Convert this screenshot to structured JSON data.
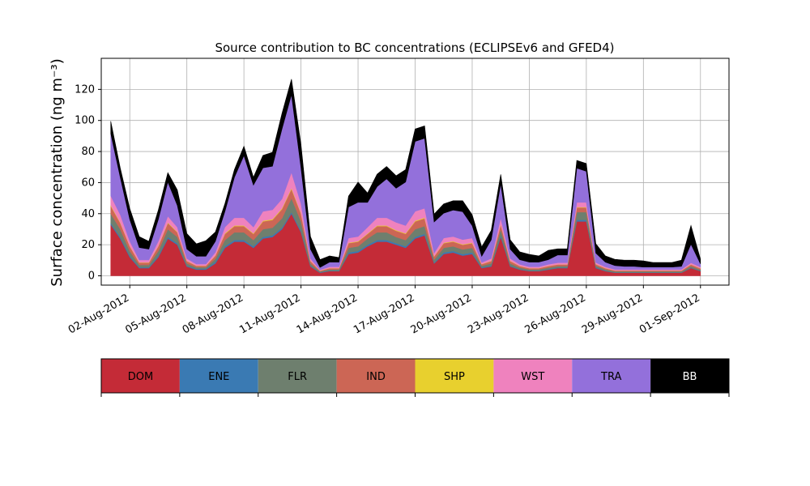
{
  "chart_data": {
    "type": "area",
    "stacked": true,
    "title": "Source contribution to BC concentrations (ECLIPSEv6 and GFED4)",
    "ylabel": "Surface concentration (ng m⁻³)",
    "xlabel": "",
    "x_range": [
      "2012-07-31T12:00",
      "2012-09-02T12:00"
    ],
    "ylim": [
      -6,
      140
    ],
    "y_ticks": [
      0,
      20,
      40,
      60,
      80,
      100,
      120
    ],
    "x_ticks": [
      "02-Aug-2012",
      "05-Aug-2012",
      "08-Aug-2012",
      "11-Aug-2012",
      "14-Aug-2012",
      "17-Aug-2012",
      "20-Aug-2012",
      "23-Aug-2012",
      "26-Aug-2012",
      "29-Aug-2012",
      "01-Sep-2012"
    ],
    "x_tick_dates": [
      "2012-08-02",
      "2012-08-05",
      "2012-08-08",
      "2012-08-11",
      "2012-08-14",
      "2012-08-17",
      "2012-08-20",
      "2012-08-23",
      "2012-08-26",
      "2012-08-29",
      "2012-09-01"
    ],
    "grid": true,
    "legend_position": "bottom",
    "x": [
      "2012-08-01T00:00",
      "2012-08-01T12:00",
      "2012-08-02T00:00",
      "2012-08-02T12:00",
      "2012-08-03T00:00",
      "2012-08-03T12:00",
      "2012-08-04T00:00",
      "2012-08-04T12:00",
      "2012-08-05T00:00",
      "2012-08-05T12:00",
      "2012-08-06T00:00",
      "2012-08-06T12:00",
      "2012-08-07T00:00",
      "2012-08-07T12:00",
      "2012-08-08T00:00",
      "2012-08-08T12:00",
      "2012-08-09T00:00",
      "2012-08-09T12:00",
      "2012-08-10T00:00",
      "2012-08-10T12:00",
      "2012-08-11T00:00",
      "2012-08-11T12:00",
      "2012-08-12T00:00",
      "2012-08-12T12:00",
      "2012-08-13T00:00",
      "2012-08-13T12:00",
      "2012-08-14T00:00",
      "2012-08-14T12:00",
      "2012-08-15T00:00",
      "2012-08-15T12:00",
      "2012-08-16T00:00",
      "2012-08-16T12:00",
      "2012-08-17T00:00",
      "2012-08-17T12:00",
      "2012-08-18T00:00",
      "2012-08-18T12:00",
      "2012-08-19T00:00",
      "2012-08-19T12:00",
      "2012-08-20T00:00",
      "2012-08-20T12:00",
      "2012-08-21T00:00",
      "2012-08-21T12:00",
      "2012-08-22T00:00",
      "2012-08-22T12:00",
      "2012-08-23T00:00",
      "2012-08-23T12:00",
      "2012-08-24T00:00",
      "2012-08-24T12:00",
      "2012-08-25T00:00",
      "2012-08-25T12:00",
      "2012-08-26T00:00",
      "2012-08-26T12:00",
      "2012-08-27T00:00",
      "2012-08-27T12:00",
      "2012-08-28T00:00",
      "2012-08-28T12:00",
      "2012-08-29T00:00",
      "2012-08-29T12:00",
      "2012-08-30T00:00",
      "2012-08-30T12:00",
      "2012-08-31T00:00",
      "2012-08-31T12:00",
      "2012-09-01T00:00"
    ],
    "series": [
      {
        "name": "DOM",
        "color": "#c42b37",
        "values": [
          33,
          24,
          12,
          5,
          5,
          12,
          24,
          20,
          6,
          4,
          4,
          8,
          18,
          22,
          22,
          18,
          24,
          25,
          30,
          40,
          28,
          6,
          2,
          3,
          3,
          14,
          15,
          19,
          22,
          22,
          20,
          18,
          24,
          26,
          8,
          14,
          15,
          13,
          14,
          5,
          6,
          25,
          6,
          4,
          3,
          3,
          4,
          5,
          5,
          35,
          35,
          5,
          3,
          2,
          2,
          2,
          2,
          2,
          2,
          2,
          2,
          5,
          3
        ]
      },
      {
        "name": "ENE",
        "color": "#3a7ab3",
        "values": [
          1,
          1,
          1,
          0.5,
          0.5,
          1,
          1,
          1,
          0.5,
          0.5,
          0.5,
          1,
          1,
          1,
          1,
          1,
          1,
          1,
          1,
          1,
          1,
          0.5,
          0.3,
          0.3,
          0.3,
          1,
          1,
          1,
          1,
          1,
          1,
          1,
          1,
          1,
          0.5,
          1,
          1,
          1,
          1,
          0.5,
          0.5,
          1,
          0.5,
          0.3,
          0.3,
          0.3,
          0.3,
          0.3,
          0.3,
          1,
          1,
          0.5,
          0.3,
          0.2,
          0.2,
          0.2,
          0.2,
          0.2,
          0.2,
          0.2,
          0.2,
          0.3,
          0.2
        ]
      },
      {
        "name": "FLR",
        "color": "#6e7f6e",
        "values": [
          6,
          5,
          3,
          1.5,
          1.5,
          3,
          5,
          4,
          1.5,
          1,
          1,
          2,
          4,
          5,
          5,
          4,
          5,
          5,
          6,
          9,
          6,
          1.5,
          0.5,
          0.8,
          0.8,
          3,
          3,
          4,
          5,
          5,
          4,
          4,
          5,
          5,
          2,
          3,
          3,
          3,
          3,
          1,
          1.5,
          4,
          1.5,
          1,
          0.8,
          0.8,
          1,
          1,
          1,
          5,
          5,
          1,
          0.8,
          0.6,
          0.6,
          0.6,
          0.6,
          0.6,
          0.6,
          0.6,
          0.6,
          1,
          0.8
        ]
      },
      {
        "name": "IND",
        "color": "#cc6655",
        "values": [
          5,
          4,
          3,
          1.5,
          1.5,
          3,
          4,
          3,
          1.5,
          1,
          1,
          2,
          4,
          4,
          4,
          4,
          5,
          5,
          6,
          6,
          5,
          1.5,
          0.5,
          0.8,
          0.8,
          3,
          3,
          3,
          4,
          4,
          4,
          4,
          5,
          5,
          2,
          3,
          3,
          3,
          3,
          1,
          1.5,
          3,
          1.5,
          1,
          0.8,
          0.8,
          1,
          1,
          1,
          3,
          3,
          1,
          0.8,
          0.6,
          0.6,
          0.6,
          0.6,
          0.6,
          0.6,
          0.6,
          0.6,
          1,
          0.8
        ]
      },
      {
        "name": "SHP",
        "color": "#e8d02e",
        "values": [
          0.5,
          0.4,
          0.3,
          0.2,
          0.2,
          0.3,
          0.4,
          0.3,
          0.2,
          0.1,
          0.1,
          0.2,
          0.4,
          0.4,
          0.4,
          0.4,
          0.5,
          0.5,
          0.5,
          0.6,
          0.5,
          0.2,
          0.1,
          0.1,
          0.1,
          0.3,
          0.3,
          0.3,
          0.4,
          0.4,
          0.4,
          0.4,
          0.5,
          0.5,
          0.2,
          0.3,
          0.3,
          0.3,
          0.3,
          0.1,
          0.2,
          0.3,
          0.2,
          0.1,
          0.1,
          0.1,
          0.1,
          0.1,
          0.1,
          0.3,
          0.3,
          0.1,
          0.1,
          0.1,
          0.1,
          0.1,
          0.1,
          0.1,
          0.1,
          0.1,
          0.1,
          0.1,
          0.1
        ]
      },
      {
        "name": "WST",
        "color": "#ef82be",
        "values": [
          6,
          5,
          3,
          1.5,
          1.5,
          3,
          4,
          3,
          1.5,
          1,
          1,
          2,
          4,
          5,
          5,
          4,
          6,
          6,
          6,
          10,
          6,
          1.5,
          0.5,
          0.8,
          0.8,
          3,
          3,
          4,
          5,
          5,
          5,
          5,
          6,
          6,
          2,
          3,
          3,
          3,
          3,
          1,
          1.5,
          4,
          1.5,
          1,
          0.8,
          0.8,
          1,
          1,
          1,
          3,
          3,
          1,
          0.8,
          0.6,
          0.6,
          0.6,
          0.6,
          0.6,
          0.6,
          0.6,
          0.6,
          1,
          0.8
        ]
      },
      {
        "name": "TRA",
        "color": "#9370db",
        "values": [
          40,
          24,
          14,
          8,
          7,
          14,
          22,
          14,
          6,
          5,
          5,
          7,
          10,
          26,
          40,
          27,
          28,
          28,
          45,
          50,
          23,
          6,
          1.5,
          3,
          3,
          20,
          22,
          16,
          20,
          25,
          22,
          28,
          45,
          45,
          20,
          16,
          17,
          18,
          8,
          4,
          12,
          22,
          6,
          3,
          3,
          3,
          3,
          5,
          5,
          22,
          20,
          6,
          3,
          2.5,
          2,
          2,
          1.5,
          1.5,
          1.5,
          1.5,
          2,
          12,
          2
        ]
      },
      {
        "name": "BB",
        "color": "#000000",
        "values": [
          8,
          6,
          7,
          7,
          5,
          6,
          6,
          10,
          10,
          8,
          10,
          6,
          5,
          5,
          6,
          5,
          8,
          9,
          10,
          10,
          15,
          8,
          5,
          4,
          3,
          7,
          13,
          6,
          8,
          8,
          8,
          8,
          8,
          8,
          5,
          6,
          6,
          7,
          7,
          6,
          6,
          6,
          6,
          5,
          5,
          4,
          6,
          4,
          4,
          5,
          5,
          6,
          4,
          4,
          4,
          4,
          4,
          3,
          3,
          3,
          4,
          12,
          3
        ]
      }
    ]
  }
}
